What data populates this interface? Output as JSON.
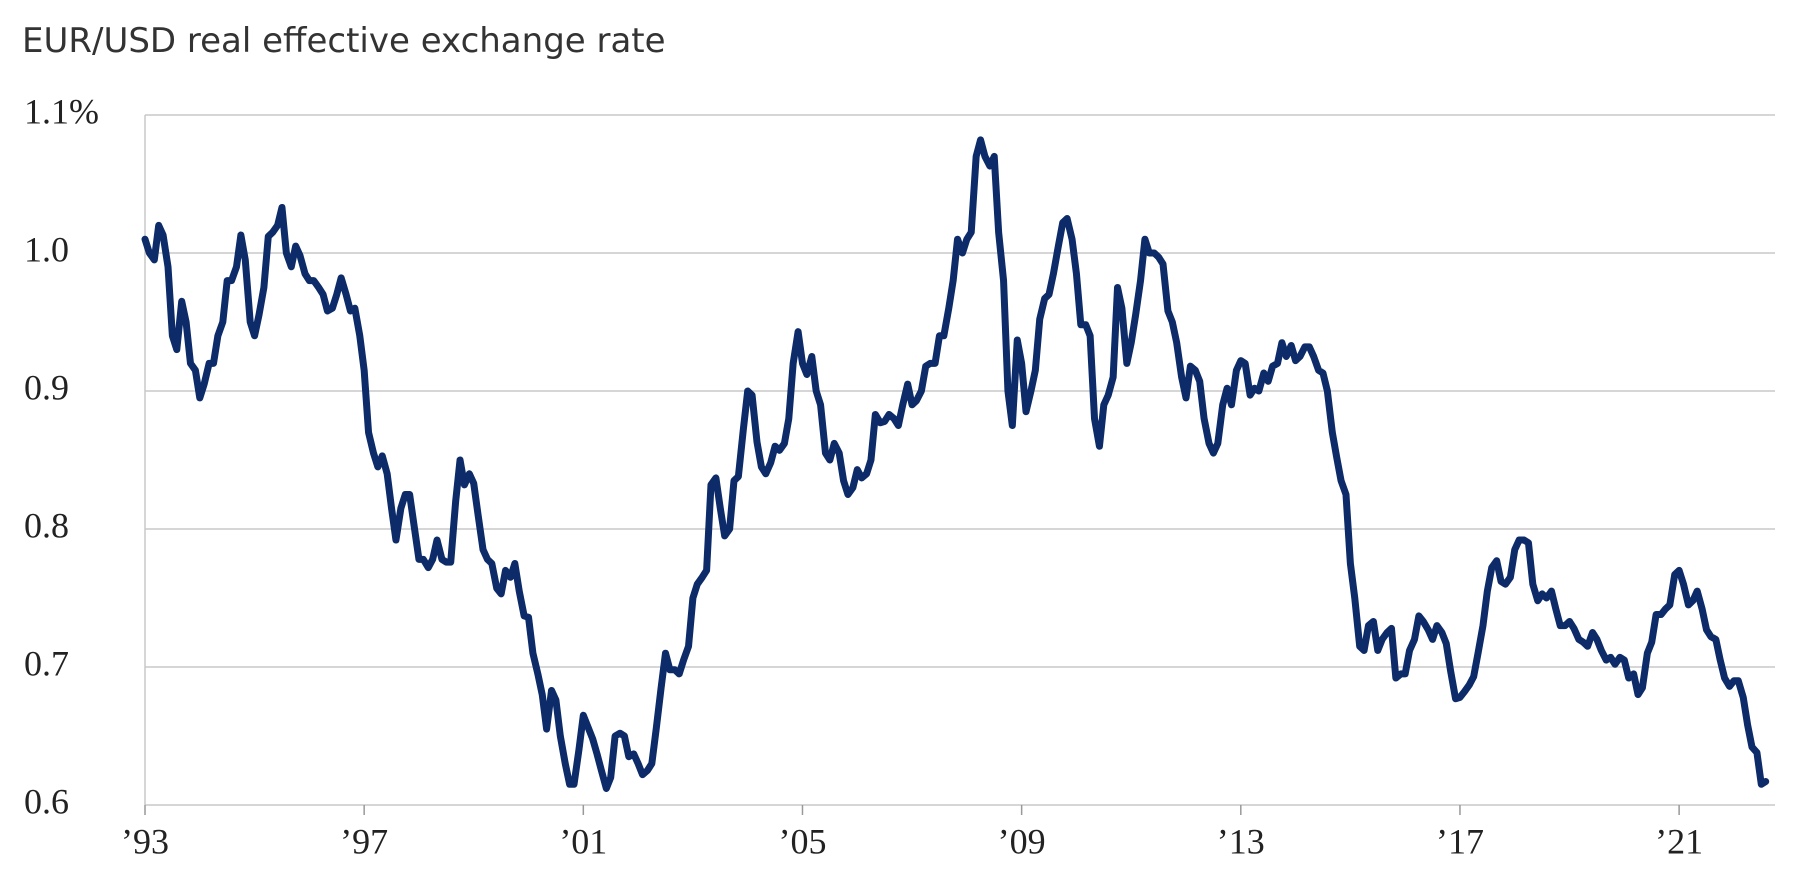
{
  "chart_data": {
    "type": "line",
    "title": "EUR/USD real effective exchange rate",
    "color": "#0c2b68",
    "grid": true,
    "xlim": [
      1993,
      2022.75
    ],
    "ylim": [
      0.6,
      1.1
    ],
    "xticks": [
      {
        "value": 1993,
        "label": "’93"
      },
      {
        "value": 1997,
        "label": "’97"
      },
      {
        "value": 2001,
        "label": "’01"
      },
      {
        "value": 2005,
        "label": "’05"
      },
      {
        "value": 2009,
        "label": "’09"
      },
      {
        "value": 2013,
        "label": "’13"
      },
      {
        "value": 2017,
        "label": "’17"
      },
      {
        "value": 2021,
        "label": "’21"
      }
    ],
    "yticks": [
      0.6,
      0.7,
      0.8,
      0.9,
      {
        "value": 1,
        "label": "1.0"
      },
      {
        "value": 1.1,
        "label": "1.1%"
      }
    ],
    "x": [
      1993,
      1993.08,
      1993.17,
      1993.25,
      1993.33,
      1993.42,
      1993.5,
      1993.58,
      1993.67,
      1993.75,
      1993.83,
      1993.92,
      1994,
      1994.08,
      1994.17,
      1994.25,
      1994.33,
      1994.42,
      1994.5,
      1994.58,
      1994.67,
      1994.75,
      1994.83,
      1994.92,
      1995,
      1995.08,
      1995.17,
      1995.25,
      1995.33,
      1995.42,
      1995.5,
      1995.58,
      1995.67,
      1995.75,
      1995.83,
      1995.92,
      1996,
      1996.08,
      1996.17,
      1996.25,
      1996.33,
      1996.42,
      1996.5,
      1996.58,
      1996.67,
      1996.75,
      1996.83,
      1996.92,
      1997,
      1997.08,
      1997.17,
      1997.25,
      1997.33,
      1997.42,
      1997.5,
      1997.58,
      1997.67,
      1997.75,
      1997.83,
      1997.92,
      1998,
      1998.08,
      1998.17,
      1998.25,
      1998.33,
      1998.42,
      1998.5,
      1998.58,
      1998.67,
      1998.75,
      1998.83,
      1998.92,
      1999,
      1999.08,
      1999.17,
      1999.25,
      1999.33,
      1999.42,
      1999.5,
      1999.58,
      1999.67,
      1999.75,
      1999.83,
      1999.92,
      2000,
      2000.08,
      2000.17,
      2000.25,
      2000.33,
      2000.42,
      2000.5,
      2000.58,
      2000.67,
      2000.75,
      2000.83,
      2000.92,
      2001,
      2001.08,
      2001.17,
      2001.25,
      2001.33,
      2001.42,
      2001.5,
      2001.58,
      2001.67,
      2001.75,
      2001.83,
      2001.92,
      2002,
      2002.08,
      2002.17,
      2002.25,
      2002.33,
      2002.42,
      2002.5,
      2002.58,
      2002.67,
      2002.75,
      2002.83,
      2002.92,
      2003,
      2003.08,
      2003.17,
      2003.25,
      2003.33,
      2003.42,
      2003.5,
      2003.58,
      2003.67,
      2003.75,
      2003.83,
      2003.92,
      2004,
      2004.08,
      2004.17,
      2004.25,
      2004.33,
      2004.42,
      2004.5,
      2004.58,
      2004.67,
      2004.75,
      2004.83,
      2004.92,
      2005,
      2005.08,
      2005.17,
      2005.25,
      2005.33,
      2005.42,
      2005.5,
      2005.58,
      2005.67,
      2005.75,
      2005.83,
      2005.92,
      2006,
      2006.08,
      2006.17,
      2006.25,
      2006.33,
      2006.42,
      2006.5,
      2006.58,
      2006.67,
      2006.75,
      2006.83,
      2006.92,
      2007,
      2007.08,
      2007.17,
      2007.25,
      2007.33,
      2007.42,
      2007.5,
      2007.58,
      2007.67,
      2007.75,
      2007.83,
      2007.92,
      2008,
      2008.08,
      2008.17,
      2008.25,
      2008.33,
      2008.42,
      2008.5,
      2008.58,
      2008.67,
      2008.75,
      2008.83,
      2008.92,
      2009,
      2009.08,
      2009.17,
      2009.25,
      2009.33,
      2009.42,
      2009.5,
      2009.58,
      2009.67,
      2009.75,
      2009.83,
      2009.92,
      2010,
      2010.08,
      2010.17,
      2010.25,
      2010.33,
      2010.42,
      2010.5,
      2010.58,
      2010.67,
      2010.75,
      2010.83,
      2010.92,
      2011,
      2011.08,
      2011.17,
      2011.25,
      2011.33,
      2011.42,
      2011.5,
      2011.58,
      2011.67,
      2011.75,
      2011.83,
      2011.92,
      2012,
      2012.08,
      2012.17,
      2012.25,
      2012.33,
      2012.42,
      2012.5,
      2012.58,
      2012.67,
      2012.75,
      2012.83,
      2012.92,
      2013,
      2013.08,
      2013.17,
      2013.25,
      2013.33,
      2013.42,
      2013.5,
      2013.58,
      2013.67,
      2013.75,
      2013.83,
      2013.92,
      2014,
      2014.08,
      2014.17,
      2014.25,
      2014.33,
      2014.42,
      2014.5,
      2014.58,
      2014.67,
      2014.75,
      2014.83,
      2014.92,
      2015,
      2015.08,
      2015.17,
      2015.25,
      2015.33,
      2015.42,
      2015.5,
      2015.58,
      2015.67,
      2015.75,
      2015.83,
      2015.92,
      2016,
      2016.08,
      2016.17,
      2016.25,
      2016.33,
      2016.42,
      2016.5,
      2016.58,
      2016.67,
      2016.75,
      2016.83,
      2016.92,
      2017,
      2017.08,
      2017.17,
      2017.25,
      2017.33,
      2017.42,
      2017.5,
      2017.58,
      2017.67,
      2017.75,
      2017.83,
      2017.92,
      2018,
      2018.08,
      2018.17,
      2018.25,
      2018.33,
      2018.42,
      2018.5,
      2018.58,
      2018.67,
      2018.75,
      2018.83,
      2018.92,
      2019,
      2019.08,
      2019.17,
      2019.25,
      2019.33,
      2019.42,
      2019.5,
      2019.58,
      2019.67,
      2019.75,
      2019.83,
      2019.92,
      2020,
      2020.08,
      2020.17,
      2020.25,
      2020.33,
      2020.42,
      2020.5,
      2020.58,
      2020.67,
      2020.75,
      2020.83,
      2020.92,
      2021,
      2021.08,
      2021.17,
      2021.25,
      2021.33,
      2021.42,
      2021.5,
      2021.58,
      2021.67,
      2021.75,
      2021.83,
      2021.92,
      2022,
      2022.08,
      2022.17,
      2022.25,
      2022.33,
      2022.42,
      2022.5,
      2022.58
    ],
    "values": [
      1.01,
      1.0,
      0.995,
      1.02,
      1.013,
      0.99,
      0.94,
      0.93,
      0.965,
      0.95,
      0.92,
      0.915,
      0.895,
      0.905,
      0.92,
      0.92,
      0.94,
      0.95,
      0.98,
      0.98,
      0.99,
      1.013,
      0.995,
      0.95,
      0.94,
      0.955,
      0.975,
      1.012,
      1.015,
      1.02,
      1.033,
      1.0,
      0.99,
      1.005,
      0.998,
      0.985,
      0.98,
      0.98,
      0.975,
      0.97,
      0.958,
      0.96,
      0.97,
      0.982,
      0.97,
      0.958,
      0.96,
      0.94,
      0.915,
      0.87,
      0.855,
      0.845,
      0.853,
      0.84,
      0.815,
      0.792,
      0.815,
      0.825,
      0.825,
      0.8,
      0.778,
      0.778,
      0.772,
      0.778,
      0.792,
      0.778,
      0.776,
      0.776,
      0.82,
      0.85,
      0.832,
      0.84,
      0.833,
      0.81,
      0.785,
      0.778,
      0.775,
      0.757,
      0.753,
      0.77,
      0.765,
      0.775,
      0.755,
      0.737,
      0.736,
      0.71,
      0.695,
      0.68,
      0.655,
      0.683,
      0.676,
      0.65,
      0.63,
      0.615,
      0.615,
      0.64,
      0.665,
      0.657,
      0.648,
      0.637,
      0.625,
      0.612,
      0.62,
      0.65,
      0.652,
      0.65,
      0.635,
      0.637,
      0.63,
      0.622,
      0.625,
      0.63,
      0.655,
      0.685,
      0.71,
      0.698,
      0.698,
      0.695,
      0.705,
      0.715,
      0.75,
      0.76,
      0.765,
      0.77,
      0.832,
      0.837,
      0.815,
      0.795,
      0.8,
      0.835,
      0.838,
      0.872,
      0.9,
      0.897,
      0.863,
      0.845,
      0.84,
      0.848,
      0.86,
      0.857,
      0.862,
      0.88,
      0.92,
      0.943,
      0.92,
      0.912,
      0.925,
      0.9,
      0.89,
      0.855,
      0.85,
      0.862,
      0.855,
      0.835,
      0.825,
      0.83,
      0.843,
      0.837,
      0.84,
      0.85,
      0.883,
      0.877,
      0.878,
      0.883,
      0.88,
      0.875,
      0.89,
      0.905,
      0.89,
      0.893,
      0.9,
      0.918,
      0.92,
      0.92,
      0.94,
      0.94,
      0.96,
      0.98,
      1.01,
      1.0,
      1.01,
      1.015,
      1.07,
      1.082,
      1.07,
      1.063,
      1.07,
      1.015,
      0.98,
      0.9,
      0.875,
      0.937,
      0.92,
      0.885,
      0.9,
      0.915,
      0.952,
      0.967,
      0.97,
      0.985,
      1.005,
      1.022,
      1.025,
      1.01,
      0.985,
      0.948,
      0.948,
      0.94,
      0.88,
      0.86,
      0.89,
      0.897,
      0.91,
      0.975,
      0.96,
      0.92,
      0.935,
      0.955,
      0.98,
      1.01,
      1.0,
      1.0,
      0.997,
      0.992,
      0.958,
      0.95,
      0.935,
      0.91,
      0.895,
      0.918,
      0.915,
      0.907,
      0.88,
      0.862,
      0.855,
      0.862,
      0.89,
      0.902,
      0.89,
      0.915,
      0.922,
      0.92,
      0.897,
      0.902,
      0.9,
      0.913,
      0.907,
      0.918,
      0.92,
      0.935,
      0.925,
      0.933,
      0.922,
      0.925,
      0.932,
      0.932,
      0.925,
      0.915,
      0.913,
      0.9,
      0.87,
      0.852,
      0.835,
      0.825,
      0.775,
      0.75,
      0.715,
      0.712,
      0.73,
      0.733,
      0.712,
      0.72,
      0.725,
      0.728,
      0.692,
      0.695,
      0.695,
      0.712,
      0.72,
      0.737,
      0.733,
      0.727,
      0.72,
      0.73,
      0.725,
      0.717,
      0.697,
      0.677,
      0.678,
      0.682,
      0.687,
      0.693,
      0.71,
      0.73,
      0.755,
      0.772,
      0.777,
      0.762,
      0.76,
      0.765,
      0.785,
      0.792,
      0.792,
      0.79,
      0.76,
      0.748,
      0.753,
      0.75,
      0.755,
      0.742,
      0.73,
      0.73,
      0.733,
      0.728,
      0.72,
      0.718,
      0.715,
      0.725,
      0.72,
      0.712,
      0.705,
      0.707,
      0.702,
      0.707,
      0.705,
      0.692,
      0.695,
      0.68,
      0.685,
      0.71,
      0.718,
      0.738,
      0.738,
      0.742,
      0.745,
      0.767,
      0.77,
      0.76,
      0.745,
      0.748,
      0.755,
      0.742,
      0.727,
      0.722,
      0.72,
      0.705,
      0.692,
      0.686,
      0.69,
      0.69,
      0.678,
      0.658,
      0.642,
      0.638,
      0.615,
      0.617
    ]
  }
}
